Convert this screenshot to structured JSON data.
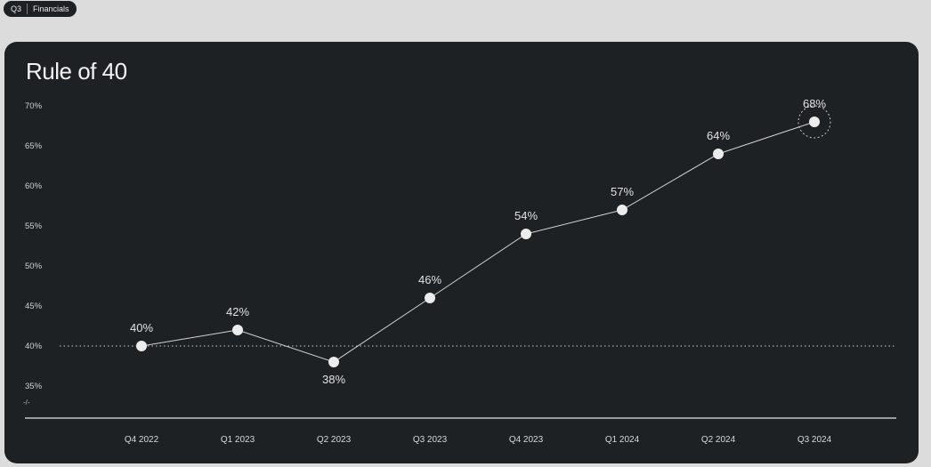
{
  "badge": {
    "period": "Q3",
    "section": "Financials"
  },
  "chart_data": {
    "type": "line",
    "title": "Rule of 40",
    "categories": [
      "Q4 2022",
      "Q1 2023",
      "Q2 2023",
      "Q3 2023",
      "Q4 2023",
      "Q1 2024",
      "Q2 2024",
      "Q3 2024"
    ],
    "values": [
      40,
      42,
      38,
      46,
      54,
      57,
      64,
      68
    ],
    "data_labels": [
      "40%",
      "42%",
      "38%",
      "46%",
      "54%",
      "57%",
      "64%",
      "68%"
    ],
    "y_ticks": [
      35,
      40,
      45,
      50,
      55,
      60,
      65,
      70
    ],
    "y_tick_labels": [
      "35%",
      "40%",
      "45%",
      "50%",
      "55%",
      "60%",
      "65%",
      "70%"
    ],
    "ylim": [
      35,
      70
    ],
    "reference_line": 40,
    "axis_break_label": "-/-",
    "highlighted_point": "Q3 2024",
    "grid": false,
    "legend": "none",
    "colors": {
      "background": "#1e2124",
      "line": "#d0d2d4",
      "point": "#ececec",
      "reference": "#c8cacc"
    }
  }
}
